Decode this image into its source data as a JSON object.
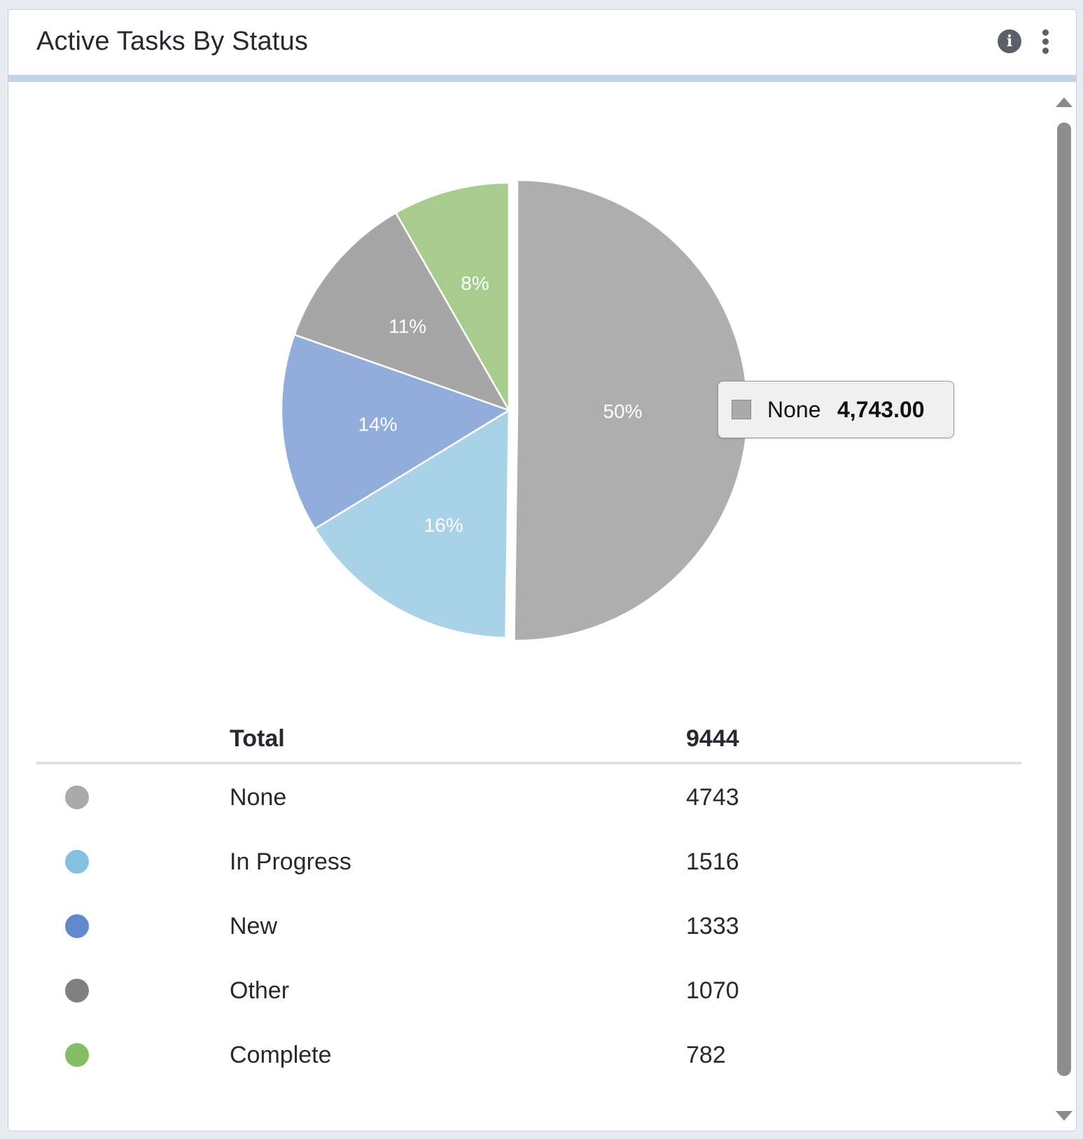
{
  "widget": {
    "title": "Active Tasks By Status"
  },
  "header_icons": {
    "info": "info-icon",
    "menu": "more-vertical-icon"
  },
  "tooltip": {
    "name": "None",
    "value": "4,743.00",
    "color": "#aaaaaa"
  },
  "table": {
    "total_label": "Total",
    "total_value": "9444",
    "rows": [
      {
        "label": "None",
        "value": "4743",
        "color": "#aaaaaa"
      },
      {
        "label": "In Progress",
        "value": "1516",
        "color": "#86c0e0"
      },
      {
        "label": "New",
        "value": "1333",
        "color": "#6289cc"
      },
      {
        "label": "Other",
        "value": "1070",
        "color": "#808080"
      },
      {
        "label": "Complete",
        "value": "782",
        "color": "#84bd63"
      }
    ]
  },
  "chart_data": {
    "type": "pie",
    "categories": [
      "None",
      "In Progress",
      "New",
      "Other",
      "Complete"
    ],
    "values": [
      4743,
      1516,
      1333,
      1070,
      782
    ],
    "slice_labels": [
      "50%",
      "16%",
      "14%",
      "11%",
      "8%"
    ],
    "colors": [
      "#aeaeae",
      "#aad2e7",
      "#91addb",
      "#a6a6a6",
      "#a7cc8e"
    ],
    "highlighted": "None",
    "direction": "clockwise-from-top"
  }
}
